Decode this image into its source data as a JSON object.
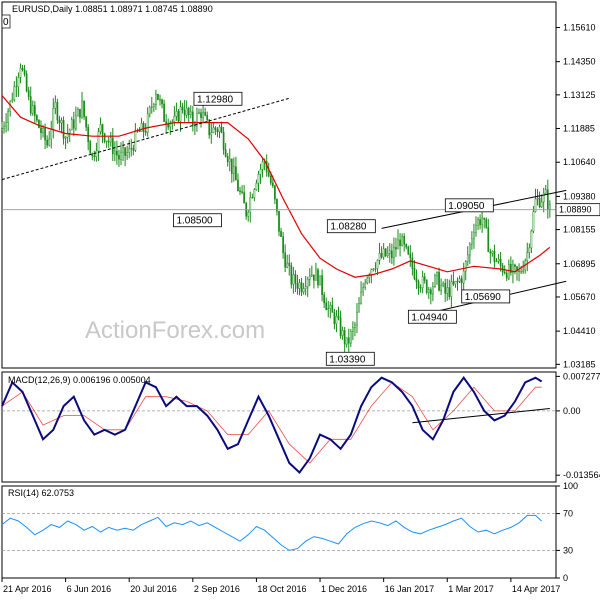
{
  "chart_data": {
    "type": "candlestick",
    "instrument": "EURUSD",
    "timeframe": "Daily",
    "header_values": "1.08851 1.08971 1.08745 1.08890",
    "watermark": "ActionForex.com",
    "corner_label": "0",
    "price_ylim": [
      1.0305,
      1.1655
    ],
    "price_ticks": [
      "1.15610",
      "1.14350",
      "1.13125",
      "1.11885",
      "1.10640",
      "1.09380",
      "1.08155",
      "1.06895",
      "1.05670",
      "1.04410",
      "1.03185"
    ],
    "price_tick_values": [
      1.1561,
      1.1435,
      1.13125,
      1.11885,
      1.1064,
      1.0938,
      1.08155,
      1.06895,
      1.0567,
      1.0441,
      1.03185
    ],
    "current_price_label": "1.08890",
    "current_price": 1.0889,
    "x_labels": [
      "21 Apr 2016",
      "6 Jun 2016",
      "20 Jul 2016",
      "2 Sep 2016",
      "18 Oct 2016",
      "1 Dec 2016",
      "16 Jan 2017",
      "1 Mar 2017",
      "14 Apr 2017"
    ],
    "x_label_index": [
      0,
      31,
      62,
      93,
      124,
      155,
      186,
      217,
      248
    ],
    "price_path": [
      [
        0,
        1.119
      ],
      [
        4,
        1.128
      ],
      [
        9,
        1.143
      ],
      [
        13,
        1.129
      ],
      [
        17,
        1.121
      ],
      [
        22,
        1.113
      ],
      [
        26,
        1.127
      ],
      [
        31,
        1.116
      ],
      [
        35,
        1.121
      ],
      [
        39,
        1.127
      ],
      [
        44,
        1.108
      ],
      [
        48,
        1.119
      ],
      [
        53,
        1.113
      ],
      [
        57,
        1.108
      ],
      [
        62,
        1.11
      ],
      [
        66,
        1.117
      ],
      [
        70,
        1.119
      ],
      [
        75,
        1.133
      ],
      [
        79,
        1.123
      ],
      [
        84,
        1.121
      ],
      [
        88,
        1.127
      ],
      [
        93,
        1.121
      ],
      [
        97,
        1.125
      ],
      [
        101,
        1.118
      ],
      [
        106,
        1.119
      ],
      [
        110,
        1.109
      ],
      [
        115,
        1.097
      ],
      [
        119,
        1.088
      ],
      [
        124,
        1.101
      ],
      [
        128,
        1.107
      ],
      [
        132,
        1.096
      ],
      [
        137,
        1.073
      ],
      [
        141,
        1.063
      ],
      [
        146,
        1.061
      ],
      [
        150,
        1.066
      ],
      [
        154,
        1.064
      ],
      [
        159,
        1.052
      ],
      [
        163,
        1.048
      ],
      [
        168,
        1.039
      ],
      [
        172,
        1.046
      ],
      [
        177,
        1.064
      ],
      [
        181,
        1.069
      ],
      [
        186,
        1.072
      ],
      [
        190,
        1.072
      ],
      [
        194,
        1.078
      ],
      [
        199,
        1.069
      ],
      [
        203,
        1.063
      ],
      [
        208,
        1.06
      ],
      [
        212,
        1.063
      ],
      [
        216,
        1.058
      ],
      [
        221,
        1.061
      ],
      [
        225,
        1.065
      ],
      [
        230,
        1.083
      ],
      [
        234,
        1.086
      ],
      [
        238,
        1.073
      ],
      [
        243,
        1.068
      ],
      [
        247,
        1.066
      ],
      [
        252,
        1.065
      ],
      [
        256,
        1.073
      ],
      [
        260,
        1.092
      ],
      [
        265,
        1.094
      ],
      [
        267,
        1.0889
      ]
    ],
    "ma_path": [
      [
        0,
        1.131
      ],
      [
        9,
        1.123
      ],
      [
        18,
        1.12
      ],
      [
        31,
        1.117
      ],
      [
        44,
        1.116
      ],
      [
        57,
        1.116
      ],
      [
        70,
        1.119
      ],
      [
        84,
        1.121
      ],
      [
        97,
        1.121
      ],
      [
        110,
        1.121
      ],
      [
        120,
        1.115
      ],
      [
        128,
        1.107
      ],
      [
        137,
        1.093
      ],
      [
        146,
        1.08
      ],
      [
        155,
        1.071
      ],
      [
        163,
        1.067
      ],
      [
        172,
        1.064
      ],
      [
        181,
        1.065
      ],
      [
        190,
        1.067
      ],
      [
        199,
        1.07
      ],
      [
        208,
        1.068
      ],
      [
        217,
        1.066
      ],
      [
        230,
        1.068
      ],
      [
        243,
        1.067
      ],
      [
        250,
        1.066
      ],
      [
        256,
        1.069
      ],
      [
        262,
        1.072
      ],
      [
        267,
        1.075
      ]
    ],
    "channel_top_line": [
      [
        185,
        1.082
      ],
      [
        275,
        1.096
      ]
    ],
    "channel_bottom_line": [
      [
        198,
        1.049
      ],
      [
        275,
        1.0625
      ]
    ],
    "support_dashed_line": [
      [
        0,
        1.1
      ],
      [
        140,
        1.13
      ]
    ],
    "annotations": [
      {
        "label": "1.12980",
        "index": 115,
        "price": 1.1298,
        "side": "left"
      },
      {
        "label": "1.08500",
        "index": 105,
        "price": 1.085,
        "side": "left"
      },
      {
        "label": "1.08280",
        "index": 180,
        "price": 1.0828,
        "side": "left"
      },
      {
        "label": "1.09050",
        "index": 218,
        "price": 1.0905,
        "side": "right"
      },
      {
        "label": "1.05690",
        "index": 226,
        "price": 1.0569,
        "side": "right"
      },
      {
        "label": "1.04940",
        "index": 200,
        "price": 1.0494,
        "side": "right"
      },
      {
        "label": "1.03390",
        "index": 160,
        "price": 1.0339,
        "side": "right"
      }
    ],
    "macd": {
      "header": "MACD(12,26,9) 0.006196 0.005004",
      "ylim": [
        -0.015,
        0.0082
      ],
      "ticks": [
        "0.007277",
        "0.00",
        "-0.013564"
      ],
      "tick_values": [
        0.007277,
        0.0,
        -0.013564
      ],
      "macd_path": [
        [
          0,
          0.001
        ],
        [
          5,
          0.006
        ],
        [
          10,
          0.004
        ],
        [
          15,
          -0.001
        ],
        [
          20,
          -0.006
        ],
        [
          25,
          -0.004
        ],
        [
          30,
          0.001
        ],
        [
          35,
          0.003
        ],
        [
          40,
          -0.002
        ],
        [
          45,
          -0.005
        ],
        [
          50,
          -0.004
        ],
        [
          55,
          -0.005
        ],
        [
          60,
          -0.004
        ],
        [
          65,
          0.001
        ],
        [
          70,
          0.006
        ],
        [
          75,
          0.005
        ],
        [
          80,
          0.001
        ],
        [
          85,
          0.003
        ],
        [
          90,
          0.001
        ],
        [
          95,
          0.001
        ],
        [
          100,
          -0.001
        ],
        [
          105,
          -0.004
        ],
        [
          110,
          -0.008
        ],
        [
          115,
          -0.007
        ],
        [
          120,
          -0.002
        ],
        [
          125,
          0.003
        ],
        [
          130,
          -0.001
        ],
        [
          135,
          -0.006
        ],
        [
          140,
          -0.011
        ],
        [
          145,
          -0.013
        ],
        [
          150,
          -0.01
        ],
        [
          155,
          -0.005
        ],
        [
          160,
          -0.006
        ],
        [
          165,
          -0.008
        ],
        [
          170,
          -0.005
        ],
        [
          175,
          0.001
        ],
        [
          180,
          0.005
        ],
        [
          185,
          0.007
        ],
        [
          190,
          0.006
        ],
        [
          195,
          0.004
        ],
        [
          200,
          0.001
        ],
        [
          205,
          -0.004
        ],
        [
          210,
          -0.006
        ],
        [
          215,
          -0.002
        ],
        [
          220,
          0.004
        ],
        [
          225,
          0.007
        ],
        [
          230,
          0.004
        ],
        [
          235,
          0.0
        ],
        [
          240,
          -0.002
        ],
        [
          245,
          -0.001
        ],
        [
          250,
          0.002
        ],
        [
          255,
          0.006
        ],
        [
          260,
          0.007
        ],
        [
          263,
          0.0062
        ]
      ],
      "signal_path": [
        [
          0,
          0.001
        ],
        [
          10,
          0.004
        ],
        [
          20,
          -0.003
        ],
        [
          30,
          -0.001
        ],
        [
          40,
          -0.001
        ],
        [
          50,
          -0.004
        ],
        [
          60,
          -0.004
        ],
        [
          70,
          0.003
        ],
        [
          80,
          0.003
        ],
        [
          90,
          0.002
        ],
        [
          100,
          0.0
        ],
        [
          110,
          -0.005
        ],
        [
          120,
          -0.005
        ],
        [
          130,
          0.0
        ],
        [
          140,
          -0.007
        ],
        [
          150,
          -0.011
        ],
        [
          160,
          -0.006
        ],
        [
          170,
          -0.006
        ],
        [
          180,
          0.001
        ],
        [
          190,
          0.006
        ],
        [
          200,
          0.003
        ],
        [
          210,
          -0.004
        ],
        [
          220,
          0.0
        ],
        [
          230,
          0.005
        ],
        [
          240,
          0.0
        ],
        [
          250,
          0.0
        ],
        [
          260,
          0.005
        ],
        [
          263,
          0.005
        ]
      ],
      "trend_line": [
        [
          200,
          -0.0025
        ],
        [
          267,
          0.0005
        ]
      ]
    },
    "rsi": {
      "header": "RSI(14) 62.0753",
      "ylim": [
        0,
        100
      ],
      "ticks": [
        "100",
        "70",
        "30",
        "0"
      ],
      "tick_values": [
        100,
        70,
        30,
        0
      ],
      "path": [
        [
          0,
          58
        ],
        [
          4,
          65
        ],
        [
          8,
          62
        ],
        [
          12,
          55
        ],
        [
          16,
          47
        ],
        [
          20,
          52
        ],
        [
          24,
          58
        ],
        [
          28,
          55
        ],
        [
          32,
          62
        ],
        [
          36,
          58
        ],
        [
          40,
          52
        ],
        [
          44,
          56
        ],
        [
          48,
          50
        ],
        [
          52,
          55
        ],
        [
          56,
          52
        ],
        [
          60,
          54
        ],
        [
          64,
          52
        ],
        [
          68,
          58
        ],
        [
          72,
          62
        ],
        [
          76,
          66
        ],
        [
          80,
          56
        ],
        [
          84,
          60
        ],
        [
          88,
          58
        ],
        [
          92,
          62
        ],
        [
          96,
          57
        ],
        [
          100,
          60
        ],
        [
          104,
          55
        ],
        [
          108,
          50
        ],
        [
          112,
          45
        ],
        [
          116,
          40
        ],
        [
          120,
          47
        ],
        [
          124,
          56
        ],
        [
          128,
          52
        ],
        [
          132,
          44
        ],
        [
          136,
          36
        ],
        [
          140,
          30
        ],
        [
          144,
          32
        ],
        [
          148,
          40
        ],
        [
          152,
          45
        ],
        [
          156,
          43
        ],
        [
          160,
          40
        ],
        [
          164,
          37
        ],
        [
          168,
          48
        ],
        [
          172,
          55
        ],
        [
          176,
          59
        ],
        [
          180,
          62
        ],
        [
          184,
          60
        ],
        [
          188,
          57
        ],
        [
          192,
          62
        ],
        [
          196,
          55
        ],
        [
          200,
          50
        ],
        [
          204,
          48
        ],
        [
          208,
          52
        ],
        [
          212,
          55
        ],
        [
          216,
          58
        ],
        [
          220,
          62
        ],
        [
          224,
          65
        ],
        [
          228,
          56
        ],
        [
          232,
          50
        ],
        [
          236,
          52
        ],
        [
          240,
          48
        ],
        [
          244,
          52
        ],
        [
          248,
          55
        ],
        [
          252,
          60
        ],
        [
          256,
          68
        ],
        [
          260,
          68
        ],
        [
          263,
          62
        ]
      ]
    }
  }
}
